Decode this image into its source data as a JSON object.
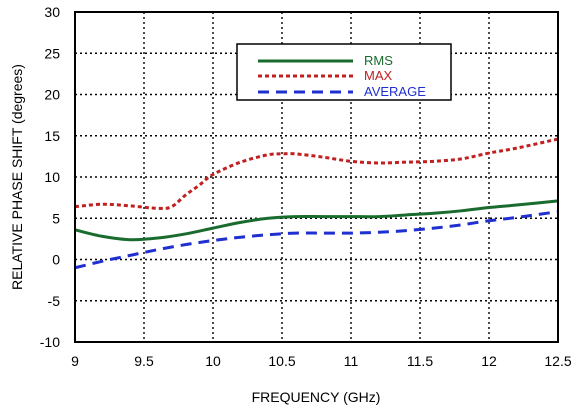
{
  "chart_data": {
    "type": "line",
    "title": "",
    "xlabel": "FREQUENCY (GHz)",
    "ylabel": "RELATIVE PHASE SHIFT  (degrees)",
    "xlim": [
      9,
      12.5
    ],
    "ylim": [
      -10,
      30
    ],
    "x_ticks": [
      9,
      9.5,
      10,
      10.5,
      11,
      11.5,
      12,
      12.5
    ],
    "x_tick_labels": [
      "9",
      "9.5",
      "10",
      "10.5",
      "11",
      "11.5",
      "12",
      "12.5"
    ],
    "y_ticks": [
      -10,
      -5,
      0,
      5,
      10,
      15,
      20,
      25,
      30
    ],
    "y_tick_labels": [
      "-10",
      "-5",
      "0",
      "5",
      "10",
      "15",
      "20",
      "25",
      "30"
    ],
    "grid": true,
    "legend_position": "top-center",
    "series": [
      {
        "name": "RMS",
        "color": "#1a6b2e",
        "style": "solid",
        "x": [
          9.0,
          9.2,
          9.4,
          9.6,
          9.8,
          10.0,
          10.2,
          10.4,
          10.6,
          10.8,
          11.0,
          11.2,
          11.4,
          11.6,
          11.8,
          12.0,
          12.2,
          12.5
        ],
        "y": [
          3.6,
          2.8,
          2.4,
          2.6,
          3.1,
          3.8,
          4.5,
          5.0,
          5.2,
          5.2,
          5.2,
          5.2,
          5.4,
          5.6,
          5.9,
          6.3,
          6.6,
          7.1
        ]
      },
      {
        "name": "MAX",
        "color": "#c0201f",
        "style": "dotted",
        "x": [
          9.0,
          9.2,
          9.4,
          9.6,
          9.7,
          9.8,
          9.9,
          10.0,
          10.2,
          10.4,
          10.5,
          10.6,
          10.8,
          11.0,
          11.2,
          11.4,
          11.6,
          11.8,
          12.0,
          12.2,
          12.5
        ],
        "y": [
          6.4,
          6.7,
          6.5,
          6.2,
          6.4,
          7.8,
          9.0,
          10.3,
          11.8,
          12.7,
          12.8,
          12.8,
          12.4,
          11.9,
          11.7,
          11.8,
          11.9,
          12.2,
          12.9,
          13.5,
          14.6
        ]
      },
      {
        "name": "AVERAGE",
        "color": "#1f2fd0",
        "style": "dashed",
        "x": [
          9.0,
          9.2,
          9.4,
          9.6,
          9.8,
          10.0,
          10.2,
          10.4,
          10.6,
          10.8,
          11.0,
          11.2,
          11.4,
          11.6,
          11.8,
          12.0,
          12.2,
          12.5
        ],
        "y": [
          -1.0,
          -0.2,
          0.5,
          1.2,
          1.8,
          2.3,
          2.7,
          3.0,
          3.2,
          3.2,
          3.2,
          3.3,
          3.5,
          3.8,
          4.2,
          4.7,
          5.1,
          5.8
        ]
      }
    ]
  }
}
